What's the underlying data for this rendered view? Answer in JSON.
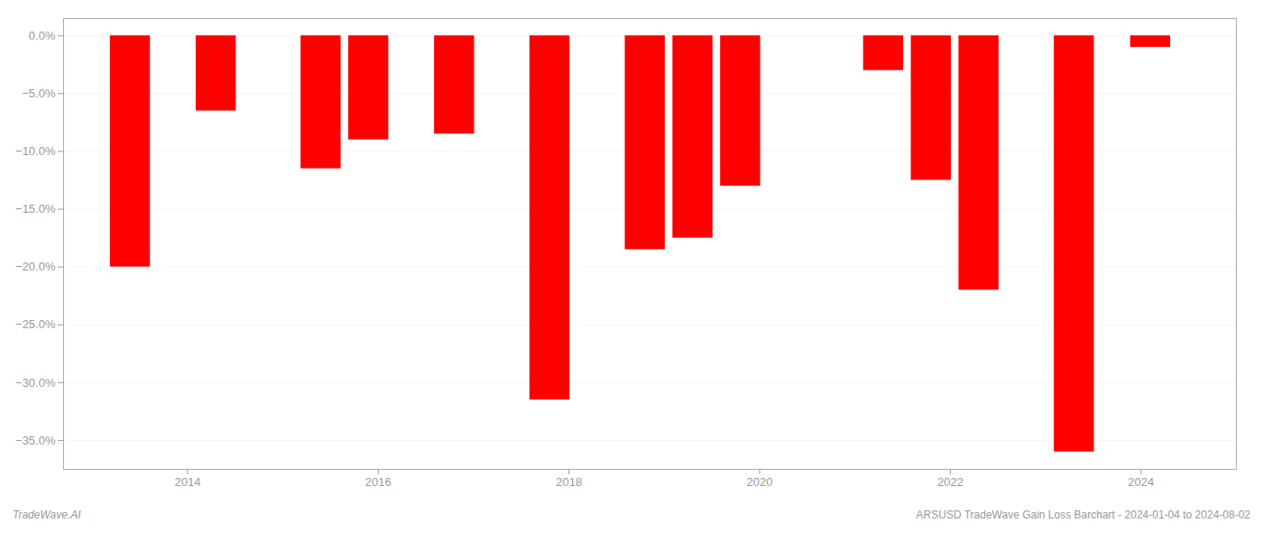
{
  "chart_data": {
    "type": "bar",
    "x": [
      2013.4,
      2014.3,
      2015.4,
      2015.9,
      2016.8,
      2017.8,
      2018.8,
      2019.3,
      2019.8,
      2021.3,
      2021.8,
      2022.3,
      2023.3,
      2024.1
    ],
    "values": [
      -20.0,
      -6.5,
      -11.5,
      -9.0,
      -8.5,
      -31.5,
      -18.5,
      -17.5,
      -13.0,
      -3.0,
      -12.5,
      -22.0,
      -36.0,
      -1.0
    ],
    "color": "#ff0000",
    "xlim": [
      2012.7,
      2025.0
    ],
    "xticks": [
      2014,
      2016,
      2018,
      2020,
      2022,
      2024
    ],
    "ylim": [
      -37.5,
      1.5
    ],
    "yticks": [
      {
        "value": 0.0,
        "label": "0.0%"
      },
      {
        "value": -5.0,
        "label": "−5.0%"
      },
      {
        "value": -10.0,
        "label": "−10.0%"
      },
      {
        "value": -15.0,
        "label": "−15.0%"
      },
      {
        "value": -20.0,
        "label": "−20.0%"
      },
      {
        "value": -25.0,
        "label": "−25.0%"
      },
      {
        "value": -30.0,
        "label": "−30.0%"
      },
      {
        "value": -35.0,
        "label": "−35.0%"
      }
    ],
    "grid": true,
    "annotations": [
      "TradeWave.AI",
      "ARSUSD TradeWave Gain Loss Barchart - 2024-01-04 to 2024-08-02"
    ]
  }
}
